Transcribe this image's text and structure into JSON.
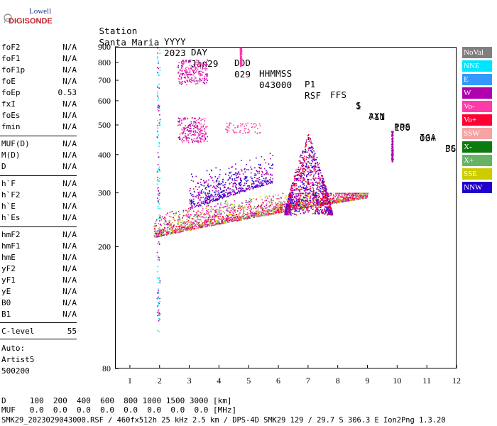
{
  "logo": {
    "line1": "Lowell",
    "line2": "DIGISONDE"
  },
  "header": {
    "row1": [
      "Station",
      "YYYY",
      "DAY",
      "DDD",
      "HHMMSS",
      "P1",
      "FFS",
      "S",
      "AXN",
      "PPS",
      "IGA",
      "PS"
    ],
    "row2": [
      "Santa Maria",
      "2023",
      "Jan29",
      "029",
      "043000",
      "RSF",
      "1",
      "711",
      "100",
      "03+",
      "36"
    ]
  },
  "params_group1": [
    {
      "name": "foF2",
      "value": "N/A"
    },
    {
      "name": "foF1",
      "value": "N/A"
    },
    {
      "name": "foF1p",
      "value": "N/A"
    },
    {
      "name": "foE",
      "value": "N/A"
    },
    {
      "name": "foEp",
      "value": "0.53"
    },
    {
      "name": "fxI",
      "value": "N/A"
    },
    {
      "name": "foEs",
      "value": "N/A"
    },
    {
      "name": "fmin",
      "value": "N/A"
    }
  ],
  "params_group2": [
    {
      "name": "MUF(D)",
      "value": "N/A"
    },
    {
      "name": "M(D)",
      "value": "N/A"
    },
    {
      "name": "D",
      "value": "N/A"
    }
  ],
  "params_group3": [
    {
      "name": "h`F",
      "value": "N/A"
    },
    {
      "name": "h`F2",
      "value": "N/A"
    },
    {
      "name": "h`E",
      "value": "N/A"
    },
    {
      "name": "h`Es",
      "value": "N/A"
    }
  ],
  "params_group4": [
    {
      "name": "hmF2",
      "value": "N/A"
    },
    {
      "name": "hmF1",
      "value": "N/A"
    },
    {
      "name": "hmE",
      "value": "N/A"
    },
    {
      "name": "yF2",
      "value": "N/A"
    },
    {
      "name": "yF1",
      "value": "N/A"
    },
    {
      "name": "yE",
      "value": "N/A"
    },
    {
      "name": "B0",
      "value": "N/A"
    },
    {
      "name": "B1",
      "value": "N/A"
    }
  ],
  "clevel": {
    "name": "C-level",
    "value": "55"
  },
  "auto": {
    "line1": "Auto:",
    "line2": "Artist5",
    "line3": "500200"
  },
  "legend": [
    {
      "label": "NoVal",
      "color": "#808080"
    },
    {
      "label": "NNE",
      "color": "#00e5ff"
    },
    {
      "label": "E",
      "color": "#3399ff"
    },
    {
      "label": "W",
      "color": "#b000b0"
    },
    {
      "label": "Vo-",
      "color": "#ff3aa8"
    },
    {
      "label": "Vo+",
      "color": "#ff0033"
    },
    {
      "label": "SSW",
      "color": "#f5a3a3"
    },
    {
      "label": "X-",
      "color": "#0c7a0c"
    },
    {
      "label": "X+",
      "color": "#66b366"
    },
    {
      "label": "SSE",
      "color": "#cccc00"
    },
    {
      "label": "NNW",
      "color": "#2200cc"
    }
  ],
  "footer": {
    "line_d": "D     100  200  400  600  800 1000 1500 3000 [km]",
    "line_muf": "MUF   0.0  0.0  0.0  0.0  0.0  0.0  0.0  0.0 [MHz]",
    "line_info": "SMK29_2023029043000.RSF / 460fx512h 25 kHz 2.5 km / DPS-4D SMK29 129 / 29.7 S 306.3 E Ion2Png 1.3.20"
  },
  "chart_data": {
    "type": "scatter",
    "xlim": [
      0.5,
      12.0
    ],
    "ylim": [
      80,
      900
    ],
    "y_scale": "log",
    "x_ticks": [
      1,
      2,
      3,
      4,
      5,
      6,
      7,
      8,
      9,
      10,
      11,
      12
    ],
    "y_ticks": [
      80,
      200,
      300,
      400,
      500,
      600,
      700,
      800,
      900
    ],
    "grid": false,
    "clusters": [
      {
        "name": "main-trace-base",
        "x_range": [
          1.8,
          9.0
        ],
        "y_range": [
          215,
          300
        ],
        "colors": [
          "#ff0033",
          "#ff3aa8",
          "#b000b0",
          "#66b366",
          "#cccc00"
        ]
      },
      {
        "name": "main-trace-upper",
        "x_range": [
          3.0,
          5.8
        ],
        "y_range": [
          260,
          420
        ],
        "colors": [
          "#2200cc",
          "#b000b0"
        ]
      },
      {
        "name": "f-layer-cusp",
        "x_range": [
          6.2,
          7.8
        ],
        "y_range": [
          260,
          480
        ],
        "colors": [
          "#b000b0",
          "#2200cc",
          "#ff0033"
        ]
      },
      {
        "name": "echo-500",
        "x_range": [
          2.6,
          3.6
        ],
        "y_range": [
          440,
          530
        ],
        "colors": [
          "#ff3aa8",
          "#b000b0"
        ]
      },
      {
        "name": "echo-750",
        "x_range": [
          2.6,
          3.6
        ],
        "y_range": [
          680,
          820
        ],
        "colors": [
          "#ff3aa8",
          "#b000b0"
        ]
      },
      {
        "name": "echo-480",
        "x_range": [
          4.2,
          5.4
        ],
        "y_range": [
          470,
          510
        ],
        "colors": [
          "#ff3aa8"
        ]
      },
      {
        "name": "vertical-streak-2",
        "x_range": [
          1.9,
          2.0
        ],
        "y_range": [
          100,
          900
        ],
        "colors": [
          "#00e5ff",
          "#b000b0"
        ]
      },
      {
        "name": "vertical-streak-4.7",
        "x_range": [
          4.7,
          4.75
        ],
        "y_range": [
          780,
          900
        ],
        "colors": [
          "#ff3aa8"
        ]
      },
      {
        "name": "vertical-streak-9.8",
        "x_range": [
          9.8,
          9.85
        ],
        "y_range": [
          380,
          480
        ],
        "colors": [
          "#b000b0"
        ]
      }
    ]
  }
}
